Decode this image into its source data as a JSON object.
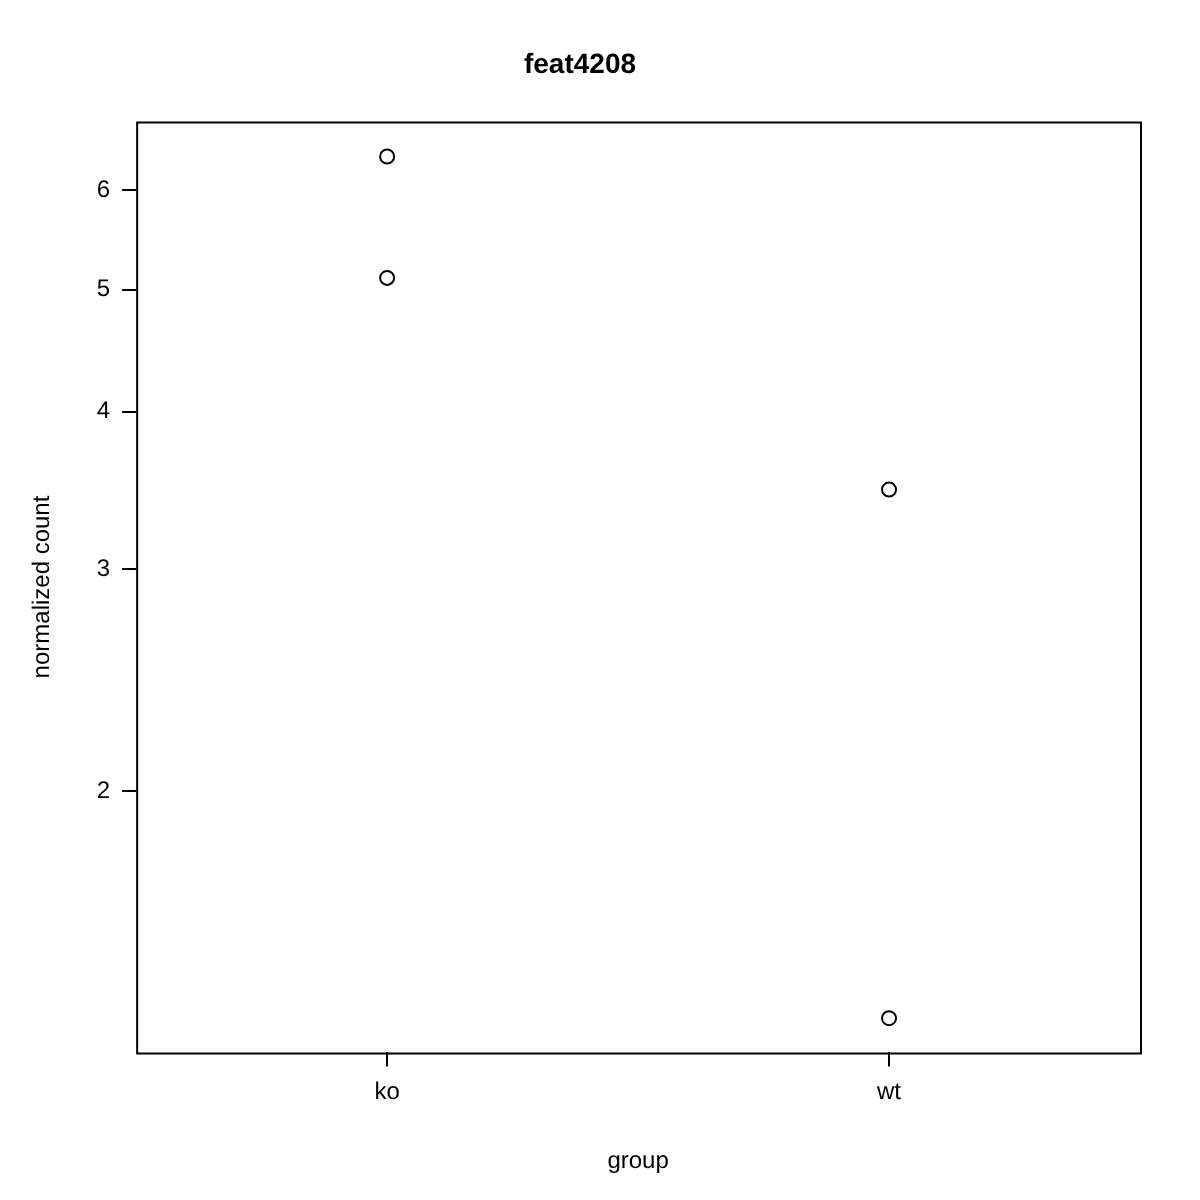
{
  "chart_data": {
    "type": "scatter",
    "title": "feat4208",
    "xlabel": "group",
    "ylabel": "normalized count",
    "categories": [
      "ko",
      "wt"
    ],
    "series": [
      {
        "color": "#000000",
        "x": [
          "ko",
          "ko",
          "wt",
          "wt"
        ],
        "values": [
          6.38,
          5.11,
          3.47,
          1.32
        ]
      }
    ],
    "log": "y",
    "ylim": [
      1.24,
      6.8
    ],
    "yticks": [
      2,
      3,
      4,
      5,
      6
    ],
    "grid": false,
    "legend": false,
    "marker": "circle"
  }
}
